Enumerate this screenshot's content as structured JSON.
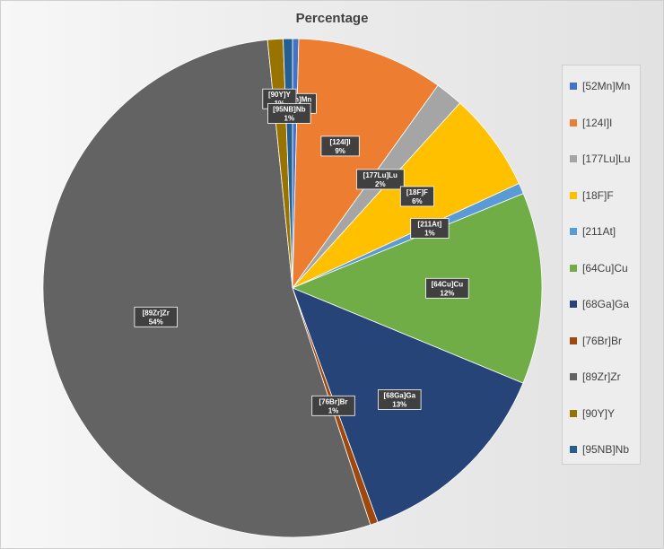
{
  "chart_data": {
    "type": "pie",
    "title": "Percentage",
    "legend_position": "right",
    "slices": [
      {
        "name": "[52Mn]Mn",
        "pct_label": "0%",
        "value": 0.4,
        "color": "#4472C4"
      },
      {
        "name": "[124I]I",
        "pct_label": "9%",
        "value": 9.5,
        "color": "#ED7D31"
      },
      {
        "name": "[177Lu]Lu",
        "pct_label": "2%",
        "value": 1.8,
        "color": "#A5A5A5"
      },
      {
        "name": "[18F]F",
        "pct_label": "6%",
        "value": 6.4,
        "color": "#FFC000"
      },
      {
        "name": "[211At]",
        "pct_label": "1%",
        "value": 0.7,
        "color": "#5B9BD5"
      },
      {
        "name": "[64Cu]Cu",
        "pct_label": "12%",
        "value": 12.4,
        "color": "#70AD47"
      },
      {
        "name": "[68Ga]Ga",
        "pct_label": "13%",
        "value": 13.2,
        "color": "#264478"
      },
      {
        "name": "[76Br]Br",
        "pct_label": "1%",
        "value": 0.5,
        "color": "#9E480E"
      },
      {
        "name": "[89Zr]Zr",
        "pct_label": "54%",
        "value": 53.4,
        "color": "#636363"
      },
      {
        "name": "[90Y]Y",
        "pct_label": "1%",
        "value": 1.0,
        "color": "#997300"
      },
      {
        "name": "[95NB]Nb",
        "pct_label": "1%",
        "value": 0.6,
        "color": "#255E91"
      }
    ]
  }
}
